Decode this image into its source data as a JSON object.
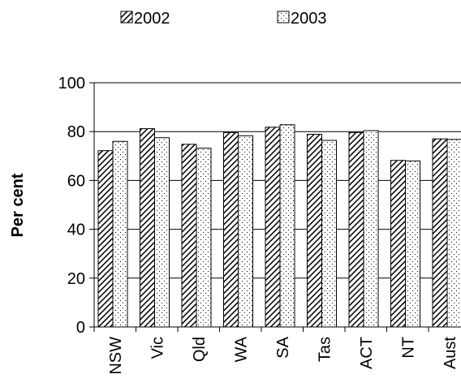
{
  "chart_data": {
    "type": "bar",
    "categories": [
      "NSW",
      "Vic",
      "Qld",
      "WA",
      "SA",
      "Tas",
      "ACT",
      "NT",
      "Aust"
    ],
    "series": [
      {
        "name": "2002",
        "values": [
          72.2,
          81.2,
          74.8,
          79.6,
          81.8,
          78.9,
          79.6,
          68.2,
          77.0
        ]
      },
      {
        "name": "2003",
        "values": [
          76.0,
          77.5,
          73.2,
          78.3,
          82.8,
          76.4,
          80.4,
          68.0,
          76.8
        ]
      }
    ],
    "ylabel": "Per cent",
    "ylim": [
      0,
      100
    ],
    "yticks": [
      "0",
      "20",
      "40",
      "60",
      "80",
      "100"
    ],
    "grid": true,
    "legend_position": "top"
  }
}
